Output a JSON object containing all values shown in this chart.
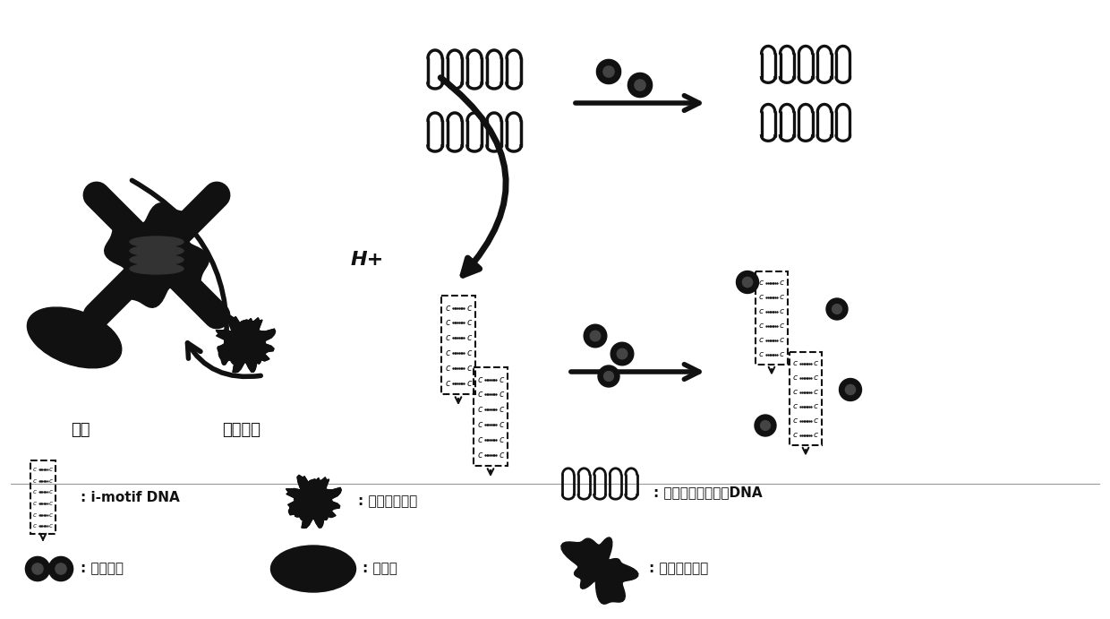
{
  "bg_color": "#ffffff",
  "text_color": "#000000",
  "figsize": [
    12.4,
    6.91
  ],
  "dpi": 100,
  "labels": {
    "oxygen": "氧气",
    "h2o2": "过氧化氢",
    "hplus": "H+"
  },
  "shape_color": "#111111"
}
